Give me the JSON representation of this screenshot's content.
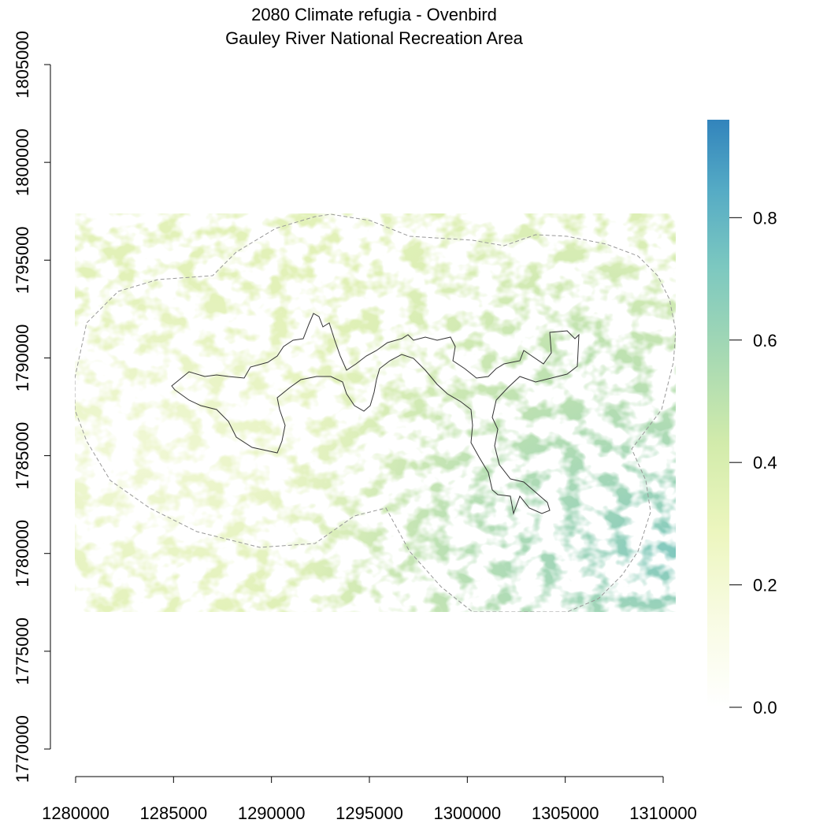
{
  "title": "2080 Climate refugia - Ovenbird",
  "subtitle": "Gauley River National Recreation Area",
  "map": {
    "x_range": [
      1280000,
      1310000
    ],
    "y_range": [
      1770000,
      1805000
    ],
    "raster_extent": {
      "x": [
        1280000,
        1310500
      ],
      "y": [
        1777000,
        1797300
      ]
    },
    "x_ticks": [
      1280000,
      1285000,
      1290000,
      1295000,
      1300000,
      1305000,
      1310000
    ],
    "y_ticks": [
      1770000,
      1775000,
      1780000,
      1785000,
      1790000,
      1795000,
      1800000,
      1805000
    ],
    "x_tick_labels": [
      "1280000",
      "1285000",
      "1290000",
      "1295000",
      "1300000",
      "1305000",
      "1310000"
    ],
    "y_tick_labels": [
      "1770000",
      "1775000",
      "1780000",
      "1785000",
      "1790000",
      "1795000",
      "1800000",
      "1805000"
    ]
  },
  "legend": {
    "range": [
      0,
      0.96
    ],
    "ticks": [
      0.0,
      0.2,
      0.4,
      0.6,
      0.8
    ],
    "tick_labels": [
      "0.0",
      "0.2",
      "0.4",
      "0.6",
      "0.8"
    ],
    "colors": [
      "#ffffff",
      "#f4f9d2",
      "#e3f2b0",
      "#c8e7a8",
      "#9fd6b6",
      "#76c6c0",
      "#52a9c5",
      "#3284bc"
    ]
  },
  "colors": {
    "buffer_outline": "#999999",
    "boundary_outline": "#333333"
  }
}
